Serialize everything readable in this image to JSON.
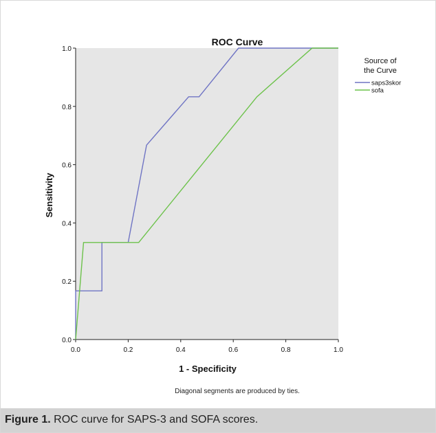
{
  "chart_data": {
    "type": "line",
    "title": "ROC Curve",
    "xlabel": "1 - Specificity",
    "ylabel": "Sensitivity",
    "xlim": [
      0.0,
      1.0
    ],
    "ylim": [
      0.0,
      1.0
    ],
    "xticks": [
      "0.0",
      "0.2",
      "0.4",
      "0.6",
      "0.8",
      "1.0"
    ],
    "yticks": [
      "0.0",
      "0.2",
      "0.4",
      "0.6",
      "0.8",
      "1.0"
    ],
    "grid": false,
    "plot_background": "#e6e6e6",
    "legend": {
      "title_lines": [
        "Source of",
        "the Curve"
      ],
      "placement": "right",
      "entries": [
        "saps3skor",
        "sofa"
      ]
    },
    "series": [
      {
        "name": "saps3skor",
        "color": "#6f74c4",
        "x": [
          0.0,
          0.0,
          0.1,
          0.1,
          0.2,
          0.2,
          0.27,
          0.43,
          0.47,
          0.62,
          1.0
        ],
        "y": [
          0.0,
          0.167,
          0.167,
          0.333,
          0.333,
          0.333,
          0.667,
          0.833,
          0.833,
          1.0,
          1.0
        ]
      },
      {
        "name": "sofa",
        "color": "#6cc24a",
        "x": [
          0.0,
          0.03,
          0.24,
          0.69,
          0.9,
          1.0
        ],
        "y": [
          0.0,
          0.333,
          0.333,
          0.833,
          1.0,
          1.0
        ]
      }
    ],
    "footnote": "Diagonal segments are produced by ties."
  },
  "caption": {
    "label": "Figure 1.",
    "text": " ROC curve for SAPS-3 and SOFA scores."
  }
}
